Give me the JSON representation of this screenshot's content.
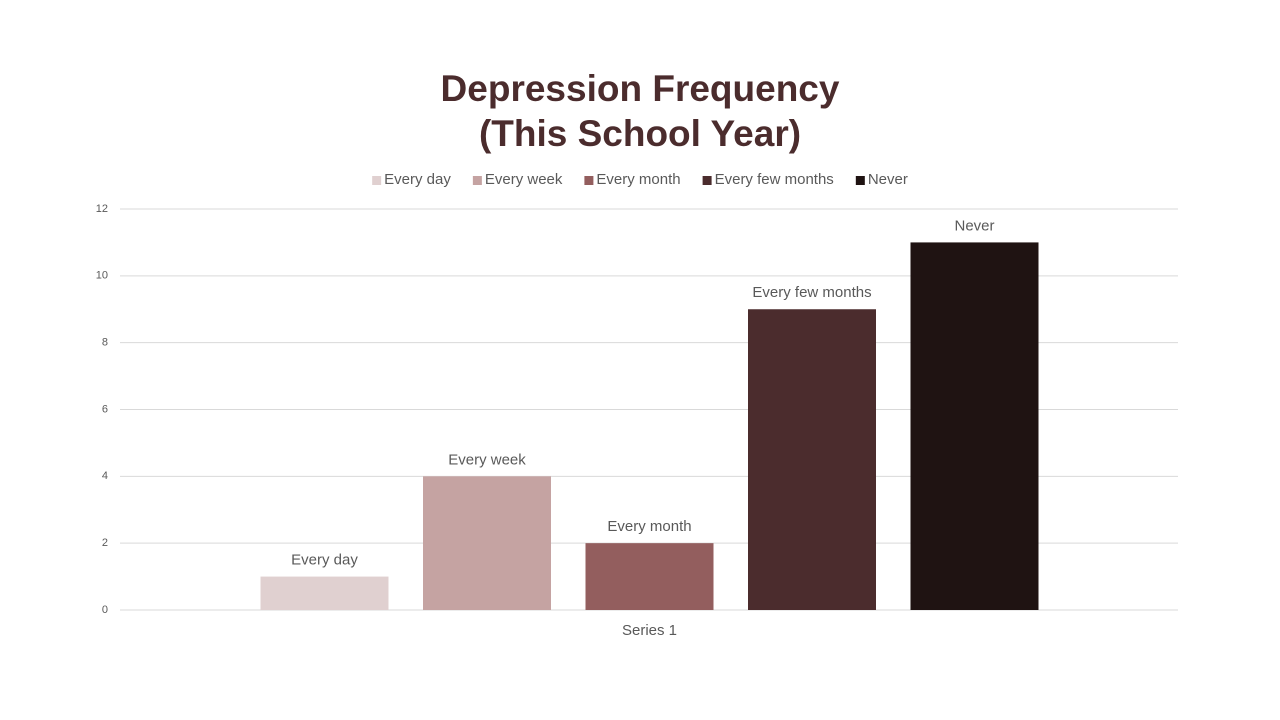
{
  "chart_data": {
    "type": "bar",
    "title": [
      "Depression Frequency",
      "(This School Year)"
    ],
    "categories": [
      "Series 1"
    ],
    "series": [
      {
        "name": "Every day",
        "color": "#e0d0d0",
        "values": [
          1
        ]
      },
      {
        "name": "Every week",
        "color": "#c5a3a2",
        "values": [
          4
        ]
      },
      {
        "name": "Every month",
        "color": "#935e5e",
        "values": [
          2
        ]
      },
      {
        "name": "Every few months",
        "color": "#4b2c2d",
        "values": [
          9
        ]
      },
      {
        "name": "Never",
        "color": "#1f1312",
        "values": [
          11
        ]
      }
    ],
    "ylim": [
      0,
      12
    ],
    "yticks": [
      0,
      2,
      4,
      6,
      8,
      10,
      12
    ],
    "grid": true,
    "legend": "top"
  }
}
